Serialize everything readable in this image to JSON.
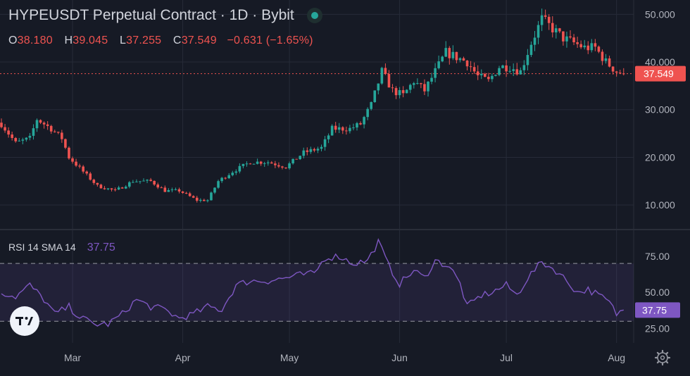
{
  "header": {
    "symbol_line": "HYPEUSDT Perpetual Contract · 1D · Bybit",
    "ohlc": [
      {
        "key": "O",
        "value": "38.180"
      },
      {
        "key": "H",
        "value": "39.045"
      },
      {
        "key": "L",
        "value": "37.255"
      },
      {
        "key": "C",
        "value": "37.549"
      }
    ],
    "change": "−0.631 (−1.65%)"
  },
  "rsi_legend": {
    "label": "RSI 14 SMA 14",
    "value": "37.75"
  },
  "colors": {
    "up": "#26a69a",
    "down": "#ef5350",
    "rsi": "#7e57c2",
    "bg": "#161a25",
    "grid": "#262b38"
  },
  "icons": {
    "brand": "tradingview-logo",
    "settings": "gear-icon"
  },
  "chart_data": [
    {
      "type": "candlestick",
      "title": "HYPEUSDT Perpetual Contract · 1D · Bybit",
      "ylim": [
        5,
        53
      ],
      "y_ticks": [
        "10.000",
        "20.000",
        "30.000",
        "40.000",
        "50.000"
      ],
      "last_price_label": "37.549",
      "last_price": 37.549,
      "x_ticks": [
        {
          "label": "Mar",
          "day": 20
        },
        {
          "label": "Apr",
          "day": 51
        },
        {
          "label": "May",
          "day": 81
        },
        {
          "label": "Jun",
          "day": 112
        },
        {
          "label": "Jul",
          "day": 142
        },
        {
          "label": "Aug",
          "day": 173
        }
      ],
      "close_anchors": [
        [
          0,
          27
        ],
        [
          4,
          23
        ],
        [
          8,
          24
        ],
        [
          10,
          28
        ],
        [
          14,
          26
        ],
        [
          17,
          24
        ],
        [
          19,
          20
        ],
        [
          23,
          17
        ],
        [
          27,
          14
        ],
        [
          32,
          13
        ],
        [
          37,
          15
        ],
        [
          42,
          15
        ],
        [
          46,
          13
        ],
        [
          50,
          13
        ],
        [
          55,
          11
        ],
        [
          58,
          11
        ],
        [
          61,
          15
        ],
        [
          65,
          17
        ],
        [
          70,
          19
        ],
        [
          75,
          19
        ],
        [
          80,
          18
        ],
        [
          85,
          21
        ],
        [
          90,
          22
        ],
        [
          93,
          26
        ],
        [
          98,
          26
        ],
        [
          101,
          27
        ],
        [
          104,
          31
        ],
        [
          107,
          38
        ],
        [
          110,
          34
        ],
        [
          113,
          33
        ],
        [
          116,
          36
        ],
        [
          119,
          34
        ],
        [
          122,
          38
        ],
        [
          125,
          42
        ],
        [
          128,
          41
        ],
        [
          131,
          40
        ],
        [
          134,
          37
        ],
        [
          137,
          36
        ],
        [
          140,
          39
        ],
        [
          143,
          39
        ],
        [
          146,
          38
        ],
        [
          149,
          44
        ],
        [
          152,
          49
        ],
        [
          155,
          47
        ],
        [
          158,
          45
        ],
        [
          161,
          44
        ],
        [
          164,
          43
        ],
        [
          167,
          43
        ],
        [
          170,
          40
        ],
        [
          173,
          38
        ],
        [
          175,
          37.549
        ]
      ]
    },
    {
      "type": "line",
      "series": [
        {
          "name": "RSI",
          "values_anchors": [
            [
              0,
              50
            ],
            [
              4,
              47
            ],
            [
              8,
              55
            ],
            [
              12,
              45
            ],
            [
              15,
              35
            ],
            [
              19,
              40
            ],
            [
              22,
              33
            ],
            [
              26,
              28
            ],
            [
              30,
              28
            ],
            [
              34,
              35
            ],
            [
              38,
              45
            ],
            [
              42,
              40
            ],
            [
              46,
              38
            ],
            [
              50,
              32
            ],
            [
              54,
              35
            ],
            [
              58,
              40
            ],
            [
              62,
              38
            ],
            [
              66,
              55
            ],
            [
              70,
              58
            ],
            [
              75,
              58
            ],
            [
              80,
              60
            ],
            [
              84,
              62
            ],
            [
              88,
              63
            ],
            [
              91,
              74
            ],
            [
              95,
              75
            ],
            [
              99,
              70
            ],
            [
              103,
              72
            ],
            [
              106,
              85
            ],
            [
              109,
              68
            ],
            [
              112,
              56
            ],
            [
              116,
              65
            ],
            [
              119,
              60
            ],
            [
              122,
              72
            ],
            [
              126,
              68
            ],
            [
              129,
              56
            ],
            [
              131,
              40
            ],
            [
              135,
              48
            ],
            [
              138,
              50
            ],
            [
              142,
              55
            ],
            [
              145,
              48
            ],
            [
              148,
              60
            ],
            [
              152,
              71
            ],
            [
              156,
              65
            ],
            [
              159,
              58
            ],
            [
              162,
              50
            ],
            [
              165,
              52
            ],
            [
              168,
              48
            ],
            [
              171,
              43
            ],
            [
              173,
              35
            ],
            [
              175,
              37.75
            ]
          ]
        }
      ],
      "ylim": [
        15,
        93
      ],
      "y_ticks": [
        "25.00",
        "50.00",
        "75.00"
      ],
      "bands": [
        30,
        70
      ],
      "last_value_label": "37.75"
    }
  ]
}
